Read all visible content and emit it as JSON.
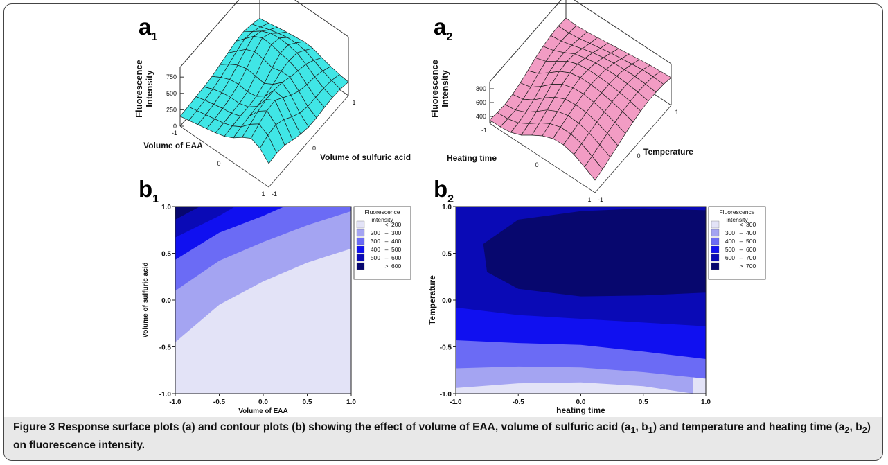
{
  "panels": {
    "a1": {
      "letter": "a",
      "sub": "1"
    },
    "a2": {
      "letter": "a",
      "sub": "2"
    },
    "b1": {
      "letter": "b",
      "sub": "1"
    },
    "b2": {
      "letter": "b",
      "sub": "2"
    }
  },
  "caption": {
    "label": "Figure 3",
    "text_1": " Response surface plots (a) and contour plots (b) showing the effect of volume of EAA, volume of sulfuric acid (a",
    "sub_1": "1",
    "text_2": ", b",
    "sub_2": "1",
    "text_3": ") and temperature and heating time (a",
    "sub_3": "2",
    "text_4": ", b",
    "sub_4": "2",
    "text_5": ") on fluorescence intensity."
  },
  "colors": {
    "surface_a1": "#40e6e6",
    "surface_a2": "#f29cc4",
    "levels": [
      "#e3e3f7",
      "#a4a4f2",
      "#6b6bf5",
      "#1010f0",
      "#0a0ab6",
      "#07076e"
    ]
  },
  "chart_data": [
    {
      "type": "surface",
      "zlabel": "Fluorescence Intensity",
      "zlabel_lines": [
        "Fluorescence",
        "Intensity"
      ],
      "xlabel": "Volume of EAA",
      "ylabel": "Volume of sulfuric acid",
      "ztick_labels": [
        "0",
        "250",
        "500",
        "750"
      ],
      "x_tick_labels": [
        "-1",
        "0",
        "1"
      ],
      "y_tick_labels": [
        "-1",
        "0",
        "1"
      ],
      "zlim": [
        0,
        900
      ],
      "grid": [
        [
          250,
          270,
          300,
          320,
          340,
          360,
          350,
          300,
          260,
          230,
          210
        ],
        [
          300,
          350,
          400,
          440,
          470,
          480,
          460,
          400,
          330,
          280,
          240
        ],
        [
          330,
          420,
          520,
          580,
          600,
          590,
          560,
          480,
          380,
          300,
          250
        ],
        [
          320,
          450,
          580,
          650,
          640,
          600,
          580,
          520,
          400,
          300,
          240
        ],
        [
          280,
          400,
          520,
          580,
          560,
          520,
          560,
          560,
          440,
          300,
          220
        ],
        [
          240,
          340,
          420,
          460,
          440,
          420,
          500,
          620,
          520,
          340,
          220
        ],
        [
          200,
          280,
          340,
          360,
          340,
          360,
          460,
          640,
          620,
          420,
          250
        ],
        [
          180,
          240,
          280,
          300,
          300,
          340,
          440,
          640,
          720,
          520,
          300
        ],
        [
          170,
          210,
          240,
          270,
          290,
          340,
          430,
          600,
          700,
          580,
          360
        ],
        [
          160,
          190,
          220,
          250,
          280,
          330,
          410,
          540,
          640,
          560,
          380
        ],
        [
          150,
          180,
          210,
          240,
          270,
          310,
          380,
          480,
          560,
          500,
          360
        ]
      ]
    },
    {
      "type": "surface",
      "zlabel": "Fluorescence Intensity",
      "zlabel_lines": [
        "Fluorescence",
        "Intensity"
      ],
      "xlabel": "Heating time",
      "ylabel": "Temperature",
      "ztick_labels": [
        "400",
        "600",
        "800"
      ],
      "x_tick_labels": [
        "-1",
        "0",
        "1"
      ],
      "y_tick_labels": [
        "-1",
        "0",
        "1"
      ],
      "zlim": [
        300,
        900
      ],
      "grid": [
        [
          560,
          550,
          560,
          580,
          600,
          620,
          640,
          660,
          680,
          690,
          700
        ],
        [
          570,
          570,
          590,
          620,
          650,
          680,
          700,
          720,
          740,
          740,
          730
        ],
        [
          560,
          580,
          620,
          670,
          710,
          740,
          760,
          770,
          770,
          760,
          740
        ],
        [
          530,
          570,
          640,
          720,
          760,
          790,
          800,
          800,
          790,
          770,
          740
        ],
        [
          490,
          540,
          640,
          740,
          800,
          820,
          820,
          810,
          790,
          760,
          720
        ],
        [
          430,
          490,
          600,
          720,
          800,
          830,
          830,
          810,
          780,
          740,
          690
        ],
        [
          380,
          420,
          530,
          660,
          760,
          810,
          820,
          800,
          760,
          710,
          650
        ],
        [
          340,
          370,
          460,
          590,
          700,
          770,
          790,
          780,
          740,
          680,
          600
        ],
        [
          320,
          340,
          410,
          520,
          640,
          720,
          760,
          750,
          710,
          640,
          560
        ],
        [
          330,
          340,
          380,
          470,
          580,
          670,
          720,
          720,
          680,
          600,
          510
        ],
        [
          350,
          350,
          370,
          430,
          530,
          620,
          680,
          690,
          650,
          570,
          480
        ]
      ]
    },
    {
      "type": "contour",
      "xlabel": "Volume of EAA",
      "ylabel": "Volume of sulfuric acid",
      "x_ticks": [
        "-1.0",
        "-0.5",
        "0.0",
        "0.5",
        "1.0"
      ],
      "y_ticks": [
        "-1.0",
        "-0.5",
        "0.0",
        "0.5",
        "1.0"
      ],
      "xlim": [
        -1,
        1
      ],
      "ylim": [
        -1,
        1
      ],
      "legend_title": [
        "Fluorescence",
        "intensity"
      ],
      "legend_position": "top-right",
      "legend_entries": [
        {
          "a": "",
          "op": "<",
          "b": "200"
        },
        {
          "a": "200",
          "op": "–",
          "b": "300"
        },
        {
          "a": "300",
          "op": "–",
          "b": "400"
        },
        {
          "a": "400",
          "op": "–",
          "b": "500"
        },
        {
          "a": "500",
          "op": "–",
          "b": "600"
        },
        {
          "a": "",
          "op": ">",
          "b": "600"
        }
      ],
      "boundaries": [
        {
          "level": 200,
          "points": [
            [
              -1.0,
              -0.45
            ],
            [
              -0.5,
              -0.05
            ],
            [
              0.0,
              0.2
            ],
            [
              0.5,
              0.4
            ],
            [
              1.0,
              0.55
            ]
          ]
        },
        {
          "level": 300,
          "points": [
            [
              -1.0,
              0.1
            ],
            [
              -0.5,
              0.42
            ],
            [
              0.0,
              0.62
            ],
            [
              0.5,
              0.8
            ],
            [
              1.0,
              0.95
            ]
          ]
        },
        {
          "level": 400,
          "points": [
            [
              -1.0,
              0.43
            ],
            [
              -0.5,
              0.72
            ],
            [
              0.0,
              0.9
            ],
            [
              0.24,
              1.0
            ]
          ]
        },
        {
          "level": 500,
          "points": [
            [
              -1.0,
              0.67
            ],
            [
              -0.5,
              0.9
            ],
            [
              -0.32,
              1.0
            ]
          ]
        },
        {
          "level": 600,
          "points": [
            [
              -1.0,
              0.86
            ],
            [
              -0.72,
              1.0
            ]
          ]
        }
      ]
    },
    {
      "type": "contour",
      "xlabel": "heating time",
      "ylabel": "Temperature",
      "x_ticks": [
        "-1.0",
        "-0.5",
        "0.0",
        "0.5",
        "1.0"
      ],
      "y_ticks": [
        "-1.0",
        "-0.5",
        "0.0",
        "0.5",
        "1.0"
      ],
      "xlim": [
        -1,
        1
      ],
      "ylim": [
        -1,
        1
      ],
      "legend_title": [
        "Fluorescence",
        "intensity"
      ],
      "legend_position": "top-right",
      "legend_entries": [
        {
          "a": "",
          "op": "<",
          "b": "300"
        },
        {
          "a": "300",
          "op": "–",
          "b": "400"
        },
        {
          "a": "400",
          "op": "–",
          "b": "500"
        },
        {
          "a": "500",
          "op": "–",
          "b": "600"
        },
        {
          "a": "600",
          "op": "–",
          "b": "700"
        },
        {
          "a": "",
          "op": ">",
          "b": "700"
        }
      ],
      "boundaries": [
        {
          "level": 300,
          "points": [
            [
              -1.0,
              -0.94
            ],
            [
              -0.5,
              -0.89
            ],
            [
              0.0,
              -0.88
            ],
            [
              0.5,
              -0.92
            ],
            [
              0.9,
              -1.0
            ]
          ]
        },
        {
          "level": 400,
          "points": [
            [
              -1.0,
              -0.73
            ],
            [
              -0.5,
              -0.71
            ],
            [
              0.0,
              -0.72
            ],
            [
              0.5,
              -0.77
            ],
            [
              1.0,
              -0.84
            ]
          ]
        },
        {
          "level": 500,
          "points": [
            [
              -1.0,
              -0.43
            ],
            [
              -0.5,
              -0.46
            ],
            [
              0.0,
              -0.48
            ],
            [
              0.5,
              -0.55
            ],
            [
              1.0,
              -0.63
            ]
          ]
        },
        {
          "level": 600,
          "points": [
            [
              -1.0,
              -0.08
            ],
            [
              -0.5,
              -0.16
            ],
            [
              0.0,
              -0.2
            ],
            [
              0.5,
              -0.24
            ],
            [
              1.0,
              -0.28
            ]
          ]
        },
        {
          "level": 700,
          "closed": true,
          "points": [
            [
              1.0,
              0.96
            ],
            [
              0.5,
              0.98
            ],
            [
              0.0,
              0.95
            ],
            [
              -0.5,
              0.86
            ],
            [
              -0.78,
              0.6
            ],
            [
              -0.75,
              0.3
            ],
            [
              -0.5,
              0.12
            ],
            [
              0.0,
              0.04
            ],
            [
              0.5,
              0.05
            ],
            [
              1.0,
              0.08
            ]
          ]
        }
      ]
    }
  ]
}
